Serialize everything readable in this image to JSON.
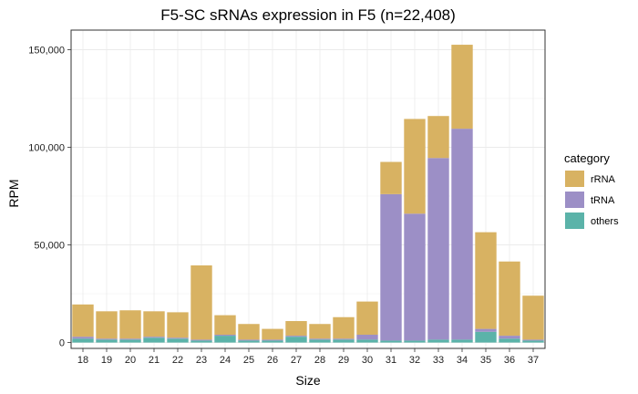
{
  "chart_data": {
    "type": "bar",
    "stacked": true,
    "title": "F5-SC sRNAs expression in F5 (n=22,408)",
    "xlabel": "Size",
    "ylabel": "RPM",
    "categories": [
      "18",
      "19",
      "20",
      "21",
      "22",
      "23",
      "24",
      "25",
      "26",
      "27",
      "28",
      "29",
      "30",
      "31",
      "32",
      "33",
      "34",
      "35",
      "36",
      "37"
    ],
    "series": [
      {
        "name": "others",
        "color": "#5bb3a9",
        "values": [
          2000,
          1500,
          1500,
          2500,
          2000,
          1000,
          3500,
          1000,
          1000,
          3000,
          1500,
          1500,
          1500,
          1000,
          1000,
          1500,
          1500,
          5500,
          2000,
          1000
        ]
      },
      {
        "name": "tRNA",
        "color": "#9c8fc6",
        "values": [
          1000,
          500,
          500,
          500,
          500,
          500,
          500,
          500,
          500,
          500,
          500,
          500,
          2500,
          75000,
          65000,
          93000,
          108000,
          1500,
          1500,
          500
        ]
      },
      {
        "name": "rRNA",
        "color": "#d8b262",
        "values": [
          16500,
          14000,
          14500,
          13000,
          13000,
          38000,
          10000,
          8000,
          5500,
          7500,
          7500,
          11000,
          17000,
          16500,
          48500,
          21500,
          43000,
          49500,
          38000,
          22500
        ]
      }
    ],
    "legend": {
      "title": "category",
      "order": [
        "rRNA",
        "tRNA",
        "others"
      ],
      "placement": "right"
    },
    "ylim": [
      -3000,
      160000
    ],
    "yticks": [
      0,
      50000,
      100000,
      150000
    ],
    "ytick_labels": [
      "0",
      "50,000",
      "100,000",
      "150,000"
    ],
    "grid": true
  }
}
